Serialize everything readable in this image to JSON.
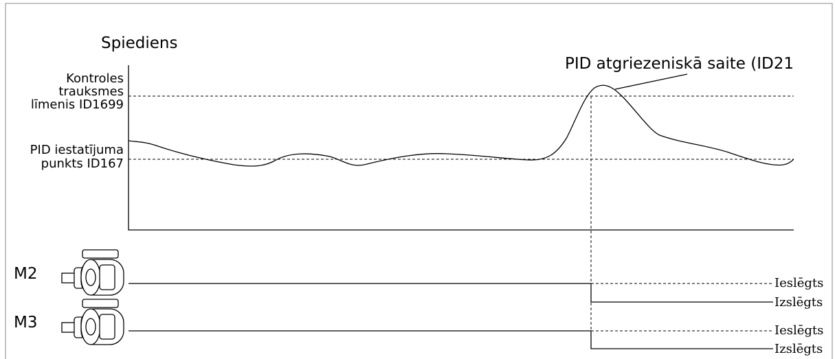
{
  "y_axis_label": "Spiediens",
  "feedback_label": "PID atgriezeniskā saite (ID21",
  "alarm_level": {
    "lines": [
      "Kontroles",
      "trauksmes",
      "līmenis ID1699"
    ]
  },
  "setpoint": {
    "lines": [
      "PID iestatījuma",
      "punkts ID167"
    ]
  },
  "motors": [
    {
      "label": "M2",
      "on_label": "Ieslēgts",
      "off_label": "Izslēgts"
    },
    {
      "label": "M3",
      "on_label": "Ieslēgts",
      "off_label": "Izslēgts"
    }
  ]
}
